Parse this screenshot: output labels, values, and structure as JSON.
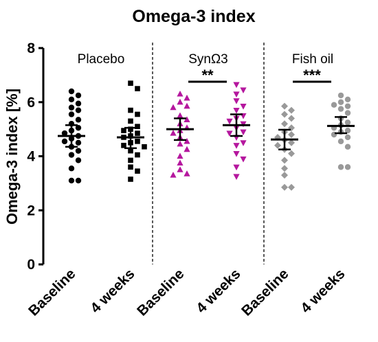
{
  "chart_data": {
    "type": "scatter",
    "title": "Omega-3 index",
    "ylabel": "Omega-3 index [%]",
    "xlabel": "",
    "ylim": [
      0,
      8
    ],
    "yticks": [
      "0",
      "2",
      "4",
      "6",
      "8"
    ],
    "categories": [
      "Baseline",
      "4 weeks",
      "Baseline",
      "4 weeks",
      "Baseline",
      "4 weeks"
    ],
    "groups": [
      {
        "label": "Placebo",
        "columns": [
          0,
          1
        ]
      },
      {
        "label": "SynΩ3",
        "columns": [
          2,
          3
        ],
        "significance": "**"
      },
      {
        "label": "Fish oil",
        "columns": [
          4,
          5
        ],
        "significance": "***"
      }
    ],
    "series": [
      {
        "group": "Placebo",
        "time": "Baseline",
        "marker": "circle",
        "color": "#000000",
        "mean": 4.75,
        "ci": [
          4.35,
          5.15
        ],
        "values": [
          6.4,
          6.25,
          6.1,
          5.95,
          5.8,
          5.7,
          5.55,
          5.35,
          5.2,
          5.05,
          4.95,
          4.85,
          4.75,
          4.65,
          4.55,
          4.5,
          4.35,
          4.2,
          4.05,
          3.85,
          3.55,
          3.1,
          3.1
        ]
      },
      {
        "group": "Placebo",
        "time": "4 weeks",
        "marker": "square",
        "color": "#000000",
        "mean": 4.7,
        "ci": [
          4.3,
          5.05
        ],
        "values": [
          6.7,
          6.5,
          5.7,
          5.55,
          5.3,
          5.1,
          5.0,
          4.95,
          4.85,
          4.75,
          4.7,
          4.55,
          4.5,
          4.4,
          4.35,
          4.2,
          4.05,
          3.85,
          3.6,
          3.45,
          3.15
        ]
      },
      {
        "group": "SynΩ3",
        "time": "Baseline",
        "marker": "triangle-up",
        "color": "#b5179e",
        "mean": 5.0,
        "ci": [
          4.6,
          5.4
        ],
        "values": [
          6.3,
          6.15,
          6.0,
          5.85,
          5.8,
          5.5,
          5.35,
          5.2,
          5.05,
          4.95,
          4.85,
          4.7,
          4.55,
          4.45,
          4.25,
          4.0,
          3.75,
          3.5,
          3.35,
          3.3
        ]
      },
      {
        "group": "SynΩ3",
        "time": "4 weeks",
        "marker": "triangle-down",
        "color": "#b5179e",
        "mean": 5.15,
        "ci": [
          4.75,
          5.55
        ],
        "values": [
          6.65,
          6.45,
          6.3,
          6.05,
          5.85,
          5.7,
          5.5,
          5.4,
          5.3,
          5.2,
          5.05,
          4.9,
          4.85,
          4.7,
          4.5,
          4.4,
          4.1,
          3.9,
          3.6,
          3.25
        ]
      },
      {
        "group": "Fish oil",
        "time": "Baseline",
        "marker": "diamond",
        "color": "#999999",
        "mean": 4.62,
        "ci": [
          4.25,
          4.98
        ],
        "values": [
          5.85,
          5.7,
          5.55,
          5.4,
          5.2,
          5.05,
          4.9,
          4.8,
          4.7,
          4.6,
          4.5,
          4.4,
          4.25,
          4.1,
          3.85,
          3.55,
          3.3,
          2.85,
          2.85
        ]
      },
      {
        "group": "Fish oil",
        "time": "4 weeks",
        "marker": "circle",
        "color": "#999999",
        "mean": 5.12,
        "ci": [
          4.85,
          5.45
        ],
        "values": [
          6.25,
          6.1,
          6.0,
          5.9,
          5.85,
          5.75,
          5.6,
          5.4,
          5.25,
          5.15,
          5.05,
          4.95,
          4.9,
          4.8,
          4.7,
          4.55,
          4.35,
          3.6,
          3.6
        ]
      }
    ],
    "grid": false,
    "legend": "none"
  }
}
